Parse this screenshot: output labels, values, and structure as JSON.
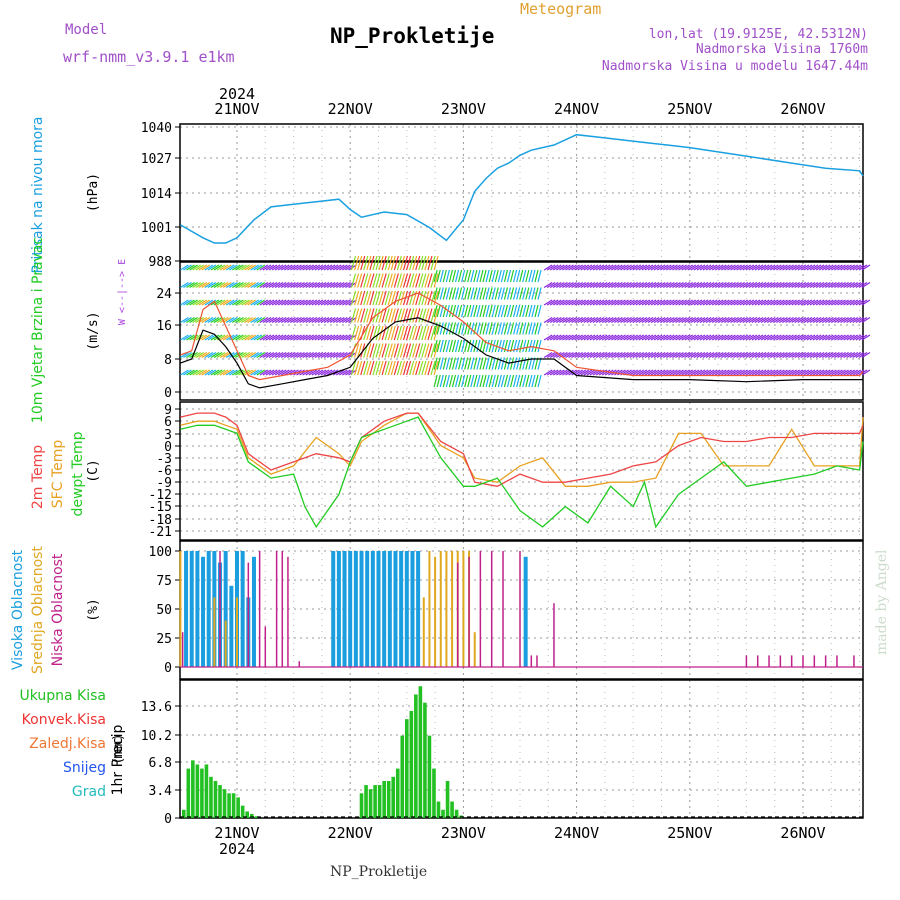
{
  "header": {
    "model_label": "Model",
    "model_name": "wrf-nmm_v3.9.1  e1km",
    "station": "NP_Prokletije",
    "product": "Meteogram",
    "lonlat": "lon,lat (19.9125E, 42.5312N)",
    "altitude": "Nadmorska Visina 1760m",
    "model_altitude": "Nadmorska Visina u modelu 1647.44m",
    "watermark": "made by Angel",
    "footer_station": "NP_Prokletije"
  },
  "colors": {
    "pressure": "#1aa0e0",
    "wind_speed": "#000000",
    "wind_gust": "#ee5533",
    "temp2m": "#ee4444",
    "sfc_temp": "#e8a020",
    "dewpoint": "#22cc22",
    "high_cloud": "#1a9ee0",
    "mid_cloud": "#e0a820",
    "low_cloud": "#c0208a",
    "total_precip": "#22c022",
    "snow": "#2255ee",
    "grid": "#999999"
  },
  "chart_data": [
    {
      "type": "line",
      "title": "",
      "ylabel": "Pritisak na nivou mora",
      "unit": "(hPa)",
      "ylim": [
        988,
        1040
      ],
      "yticks": [
        "1040",
        "1027",
        "1014",
        "1001",
        "988"
      ],
      "xticks_top_year": "2024",
      "xticks": [
        "21NOV",
        "22NOV",
        "23NOV",
        "24NOV",
        "25NOV",
        "26NOV"
      ],
      "grid": true,
      "series": [
        {
          "name": "",
          "x": [
            -0.5,
            -0.3,
            -0.2,
            -0.1,
            0.0,
            0.15,
            0.3,
            0.5,
            0.7,
            0.9,
            1.0,
            1.1,
            1.3,
            1.5,
            1.7,
            1.85,
            2.0,
            2.1,
            2.2,
            2.3,
            2.4,
            2.5,
            2.6,
            2.8,
            3.0,
            3.2,
            3.4,
            3.6,
            3.8,
            4.0,
            4.3,
            4.6,
            4.9,
            5.2,
            5.5,
            5.7
          ],
          "y": [
            1002,
            997,
            995,
            995,
            997,
            1004,
            1009,
            1010,
            1011,
            1012,
            1008,
            1005,
            1007,
            1006,
            1001,
            996,
            1004,
            1015,
            1020,
            1024,
            1026,
            1029,
            1031,
            1033,
            1037,
            1036,
            1035,
            1034,
            1033,
            1032,
            1030,
            1028,
            1026,
            1024,
            1023,
            1021
          ]
        }
      ]
    },
    {
      "type": "line",
      "title": "",
      "ylabel": "10m Vjetar Brzina i Pravac",
      "unit": "(m/s)",
      "ylim": [
        -2,
        30
      ],
      "yticks": [
        "24",
        "16",
        "8",
        "0"
      ],
      "grid": true,
      "series": [
        {
          "name": "",
          "x": [
            -0.5,
            -0.4,
            -0.3,
            -0.2,
            -0.1,
            0.0,
            0.1,
            0.2,
            0.4,
            0.6,
            0.8,
            1.0,
            1.2,
            1.4,
            1.6,
            1.8,
            2.0,
            2.2,
            2.4,
            2.6,
            2.8,
            3.0,
            3.5,
            4.0,
            4.5,
            5.0,
            5.5,
            5.7
          ],
          "y": [
            7,
            8,
            15,
            14,
            11,
            7,
            2,
            1,
            2,
            3,
            4,
            6,
            13,
            17,
            18,
            16,
            13,
            9,
            7,
            8,
            8,
            4,
            3,
            3,
            2.5,
            3,
            3,
            3
          ]
        },
        {
          "name": "",
          "x": [
            -0.5,
            -0.4,
            -0.3,
            -0.2,
            -0.1,
            0.0,
            0.1,
            0.2,
            0.4,
            0.6,
            0.8,
            1.0,
            1.2,
            1.4,
            1.6,
            1.8,
            2.0,
            2.2,
            2.4,
            2.6,
            2.8,
            3.0,
            3.5,
            4.0,
            4.5,
            5.0,
            5.5,
            5.7
          ],
          "y": [
            9,
            10,
            20,
            22,
            16,
            10,
            4,
            3,
            4,
            5,
            6,
            9,
            18,
            22,
            24,
            21,
            17,
            12,
            10,
            11,
            10,
            6,
            4,
            4,
            4,
            4,
            4,
            5
          ]
        }
      ],
      "barb_colors": [
        "#1ab0ee",
        "#22cc22",
        "#88dd22",
        "#eeaa22",
        "#ee3333",
        "#8822dd"
      ]
    },
    {
      "type": "line",
      "title": "",
      "ylabel": "2m Temp",
      "ylabel2": "SFC Temp",
      "ylabel3": "dewpt Temp",
      "unit": "(C)",
      "ylim": [
        -21,
        9
      ],
      "yticks": [
        "9",
        "6",
        "3",
        "0",
        "-3",
        "-6",
        "-9",
        "-12",
        "-15",
        "-18",
        "-21"
      ],
      "grid": true,
      "series": [
        {
          "name": "",
          "x": [
            -0.5,
            -0.35,
            -0.2,
            -0.1,
            0.0,
            0.1,
            0.3,
            0.5,
            0.7,
            0.9,
            1.0,
            1.1,
            1.3,
            1.5,
            1.6,
            1.8,
            2.0,
            2.1,
            2.3,
            2.5,
            2.7,
            2.9,
            3.1,
            3.3,
            3.5,
            3.7,
            3.9,
            4.1,
            4.3,
            4.5,
            4.7,
            4.9,
            5.1,
            5.3,
            5.5,
            5.7
          ],
          "y": [
            7,
            8,
            8,
            7,
            5,
            -2,
            -6,
            -4,
            -2,
            -3,
            -4,
            2,
            6,
            8,
            8,
            1,
            -2,
            -9,
            -10,
            -7,
            -9,
            -9,
            -8,
            -7,
            -5,
            -4,
            0,
            2,
            1,
            1,
            2,
            2,
            3,
            3,
            3,
            5
          ]
        },
        {
          "name": "",
          "x": [
            -0.5,
            -0.35,
            -0.2,
            -0.1,
            0.0,
            0.1,
            0.3,
            0.5,
            0.7,
            0.9,
            1.0,
            1.1,
            1.3,
            1.5,
            1.6,
            1.8,
            2.0,
            2.1,
            2.3,
            2.5,
            2.7,
            2.9,
            3.1,
            3.3,
            3.5,
            3.7,
            3.9,
            4.1,
            4.3,
            4.5,
            4.7,
            4.9,
            5.1,
            5.3,
            5.5,
            5.7
          ],
          "y": [
            5,
            6,
            6,
            5,
            4,
            -3,
            -7,
            -5,
            2,
            -2,
            -5,
            1,
            5,
            8,
            8,
            0,
            -3,
            -8,
            -9,
            -5,
            -3,
            -10,
            -10,
            -9,
            -9,
            -8,
            3,
            3,
            -5,
            -5,
            -5,
            4,
            -5,
            -5,
            -5,
            7
          ]
        },
        {
          "name": "",
          "x": [
            -0.5,
            -0.35,
            -0.2,
            -0.1,
            0.0,
            0.1,
            0.3,
            0.5,
            0.6,
            0.7,
            0.9,
            1.0,
            1.1,
            1.3,
            1.5,
            1.6,
            1.8,
            2.0,
            2.1,
            2.3,
            2.5,
            2.7,
            2.9,
            3.1,
            3.3,
            3.5,
            3.6,
            3.7,
            3.9,
            4.1,
            4.3,
            4.5,
            4.7,
            4.9,
            5.1,
            5.3,
            5.5,
            5.7
          ],
          "y": [
            4,
            5,
            5,
            4,
            3,
            -4,
            -8,
            -7,
            -15,
            -20,
            -12,
            -4,
            2,
            4,
            6,
            7,
            -3,
            -10,
            -10,
            -8,
            -16,
            -20,
            -15,
            -19,
            -10,
            -15,
            -9,
            -20,
            -12,
            -8,
            -4,
            -10,
            -9,
            -8,
            -7,
            -5,
            -6,
            1
          ]
        }
      ]
    },
    {
      "type": "bar",
      "title": "",
      "ylabel": "Visoka Oblacnost",
      "ylabel2": "Srednja Oblacnost",
      "ylabel3": "Niska Oblacnost",
      "unit": "(%)",
      "ylim": [
        0,
        100
      ],
      "yticks": [
        "100",
        "75",
        "50",
        "25",
        "0"
      ],
      "grid": true,
      "series": [
        {
          "name": "",
          "x": [
            -0.45,
            -0.4,
            -0.35,
            -0.3,
            -0.25,
            -0.2,
            -0.15,
            -0.1,
            -0.05,
            0.0,
            0.05,
            0.1,
            0.15,
            0.85,
            0.9,
            0.95,
            1.0,
            1.05,
            1.1,
            1.15,
            1.2,
            1.25,
            1.3,
            1.35,
            1.4,
            1.45,
            1.5,
            1.55,
            1.6,
            2.55
          ],
          "values": [
            100,
            100,
            100,
            95,
            100,
            100,
            90,
            100,
            70,
            100,
            100,
            60,
            95,
            100,
            100,
            100,
            100,
            100,
            100,
            100,
            100,
            100,
            100,
            100,
            100,
            100,
            100,
            100,
            100,
            95
          ]
        },
        {
          "name": "",
          "x": [
            -0.5,
            -0.2,
            -0.1,
            0.0,
            1.65,
            1.7,
            1.75,
            1.8,
            1.85,
            1.9,
            1.95,
            2.0,
            2.05,
            2.1
          ],
          "values": [
            100,
            60,
            40,
            60,
            60,
            100,
            95,
            100,
            100,
            100,
            100,
            100,
            100,
            30
          ]
        },
        {
          "name": "",
          "x": [
            -0.48,
            -0.15,
            0.1,
            0.2,
            0.25,
            0.35,
            0.4,
            0.45,
            0.55,
            1.95,
            2.05,
            2.15,
            2.25,
            2.35,
            2.5,
            2.6,
            2.65,
            2.8,
            4.5,
            4.6,
            4.7,
            4.8,
            4.9,
            5.0,
            5.1,
            5.2,
            5.3,
            5.45,
            5.55
          ],
          "values": [
            30,
            100,
            90,
            100,
            35,
            100,
            100,
            95,
            5,
            90,
            95,
            100,
            100,
            100,
            100,
            10,
            10,
            55,
            10,
            10,
            10,
            10,
            10,
            10,
            10,
            10,
            10,
            10,
            10
          ]
        }
      ]
    },
    {
      "type": "bar",
      "title": "",
      "ylabel": "1hr Precip",
      "unit": "(mm)",
      "ylim": [
        0,
        17
      ],
      "yticks": [
        "13.6",
        "10.2",
        "6.8",
        "3.4",
        "0"
      ],
      "legend": [
        "Ukupna Kisa",
        "Konvek.Kisa",
        "Zaledj.Kisa",
        "Snijeg",
        "Grad"
      ],
      "xticks": [
        "21NOV",
        "22NOV",
        "23NOV",
        "24NOV",
        "25NOV",
        "26NOV"
      ],
      "xticks_bottom_year": "2024",
      "grid": true,
      "series": [
        {
          "name": "Ukupna Kisa",
          "x": [
            -0.47,
            -0.43,
            -0.39,
            -0.35,
            -0.31,
            -0.27,
            -0.23,
            -0.19,
            -0.15,
            -0.11,
            -0.07,
            -0.03,
            0.01,
            0.05,
            0.09,
            0.13,
            0.17,
            1.1,
            1.14,
            1.18,
            1.22,
            1.26,
            1.3,
            1.34,
            1.38,
            1.42,
            1.46,
            1.5,
            1.54,
            1.58,
            1.62,
            1.66,
            1.7,
            1.74,
            1.78,
            1.82,
            1.86,
            1.9,
            1.94,
            1.98
          ],
          "values": [
            1,
            6,
            7,
            6.5,
            6,
            6.5,
            5,
            4.5,
            4,
            3.5,
            3,
            3,
            2.5,
            1.5,
            0.8,
            0.5,
            0.2,
            3,
            4,
            3.5,
            4,
            4,
            4.5,
            4.5,
            5,
            6,
            10,
            12,
            13,
            15,
            16,
            14,
            10,
            6,
            2,
            1,
            4.5,
            2,
            1,
            0.3
          ]
        }
      ]
    }
  ]
}
